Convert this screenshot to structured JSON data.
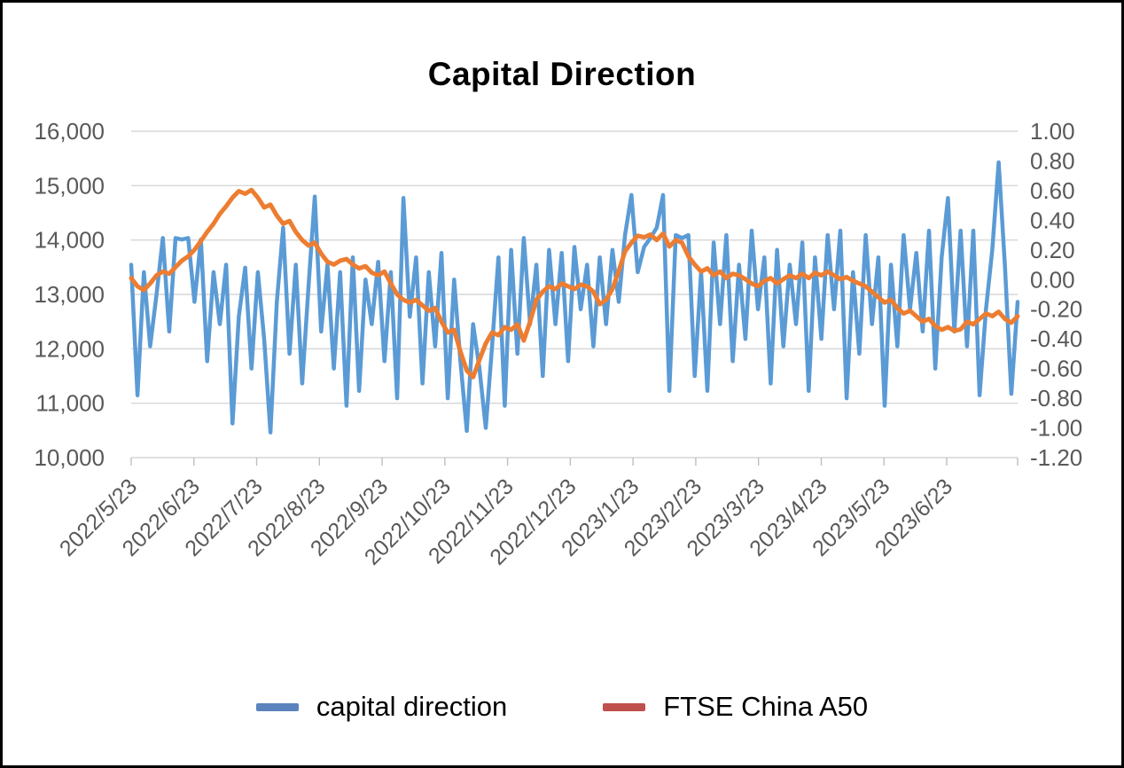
{
  "chart_data": {
    "type": "line",
    "title": "Capital Direction",
    "grid": "horizontal",
    "legend_position": "bottom",
    "gridline_color": "#D6D6D6",
    "tick_mark_color": "#BFBFBF",
    "axis_label_color": "#595959",
    "x_tick_labels": [
      "2022/5/23",
      "2022/6/23",
      "2022/7/23",
      "2022/8/23",
      "2022/9/23",
      "2022/10/23",
      "2022/11/23",
      "2022/12/23",
      "2023/1/23",
      "2023/2/23",
      "2023/3/23",
      "2023/4/23",
      "2023/5/23",
      "2023/6/23"
    ],
    "left_axis": {
      "min": 10000,
      "max": 16000,
      "step": 1000,
      "tick_labels": [
        "16,000",
        "15,000",
        "14,000",
        "13,000",
        "12,000",
        "11,000",
        "10,000"
      ]
    },
    "right_axis": {
      "min": -1.2,
      "max": 1.0,
      "step": 0.2,
      "tick_labels": [
        "1.00",
        "0.80",
        "0.60",
        "0.40",
        "0.20",
        "0.00",
        "-0.20",
        "-0.40",
        "-0.60",
        "-0.80",
        "-1.00",
        "-1.20"
      ]
    },
    "series": [
      {
        "name": "capital direction",
        "axis": "right",
        "color": "#5B9BD5",
        "legend_color": "#5B84BE",
        "values": [
          0.1,
          -0.78,
          0.05,
          -0.45,
          -0.1,
          0.28,
          -0.35,
          0.28,
          0.27,
          0.28,
          -0.15,
          0.27,
          -0.55,
          0.05,
          -0.3,
          0.1,
          -0.97,
          -0.25,
          0.08,
          -0.6,
          0.05,
          -0.4,
          -1.03,
          -0.15,
          0.35,
          -0.5,
          0.1,
          -0.7,
          -0.05,
          0.56,
          -0.35,
          0.1,
          -0.6,
          0.05,
          -0.85,
          0.15,
          -0.75,
          0.0,
          -0.3,
          0.12,
          -0.55,
          0.05,
          -0.8,
          0.55,
          -0.25,
          0.15,
          -0.7,
          0.05,
          -0.45,
          0.18,
          -0.8,
          0.0,
          -0.55,
          -1.02,
          -0.3,
          -0.6,
          -1.0,
          -0.45,
          0.15,
          -0.85,
          0.2,
          -0.5,
          0.28,
          -0.3,
          0.1,
          -0.65,
          0.2,
          -0.3,
          0.18,
          -0.55,
          0.22,
          -0.2,
          0.1,
          -0.45,
          0.15,
          -0.3,
          0.2,
          -0.15,
          0.3,
          0.57,
          0.05,
          0.22,
          0.28,
          0.35,
          0.57,
          -0.75,
          0.3,
          0.28,
          0.3,
          -0.65,
          0.05,
          -0.75,
          0.25,
          -0.3,
          0.3,
          -0.55,
          0.1,
          -0.4,
          0.33,
          -0.2,
          0.15,
          -0.7,
          0.2,
          -0.45,
          0.1,
          -0.3,
          0.25,
          -0.75,
          0.15,
          -0.4,
          0.3,
          -0.2,
          0.33,
          -0.8,
          0.05,
          -0.5,
          0.3,
          -0.3,
          0.15,
          -0.85,
          0.1,
          -0.45,
          0.3,
          -0.2,
          0.18,
          -0.35,
          0.33,
          -0.6,
          0.15,
          0.55,
          -0.35,
          0.33,
          -0.45,
          0.33,
          -0.78,
          -0.2,
          0.2,
          0.79,
          0.09,
          -0.77,
          -0.15
        ]
      },
      {
        "name": "FTSE China A50",
        "axis": "left",
        "color": "#ED7D31",
        "legend_color": "#C0504D",
        "values": [
          13300,
          13150,
          13080,
          13200,
          13350,
          13420,
          13380,
          13500,
          13620,
          13700,
          13820,
          13980,
          14150,
          14300,
          14480,
          14620,
          14780,
          14900,
          14850,
          14920,
          14780,
          14600,
          14650,
          14450,
          14300,
          14350,
          14150,
          14000,
          13900,
          13950,
          13750,
          13600,
          13550,
          13620,
          13650,
          13550,
          13480,
          13520,
          13400,
          13350,
          13420,
          13200,
          13000,
          12900,
          12850,
          12900,
          12800,
          12700,
          12750,
          12500,
          12300,
          12350,
          11950,
          11600,
          11480,
          11800,
          12100,
          12300,
          12250,
          12400,
          12350,
          12450,
          12150,
          12500,
          12900,
          13050,
          13150,
          13100,
          13200,
          13150,
          13100,
          13180,
          13150,
          13050,
          12820,
          12900,
          13100,
          13430,
          13790,
          13950,
          14080,
          14050,
          14100,
          14000,
          14120,
          13880,
          14000,
          13950,
          13700,
          13550,
          13420,
          13480,
          13350,
          13420,
          13300,
          13380,
          13350,
          13280,
          13200,
          13150,
          13250,
          13300,
          13200,
          13280,
          13350,
          13300,
          13380,
          13300,
          13400,
          13350,
          13420,
          13350,
          13280,
          13320,
          13250,
          13200,
          13150,
          13050,
          12950,
          12850,
          12900,
          12750,
          12650,
          12700,
          12600,
          12500,
          12550,
          12420,
          12350,
          12400,
          12330,
          12360,
          12500,
          12450,
          12550,
          12650,
          12600,
          12680,
          12550,
          12480,
          12600
        ]
      }
    ]
  },
  "legend": {
    "items": [
      {
        "label": "capital direction"
      },
      {
        "label": "FTSE China A50"
      }
    ]
  }
}
